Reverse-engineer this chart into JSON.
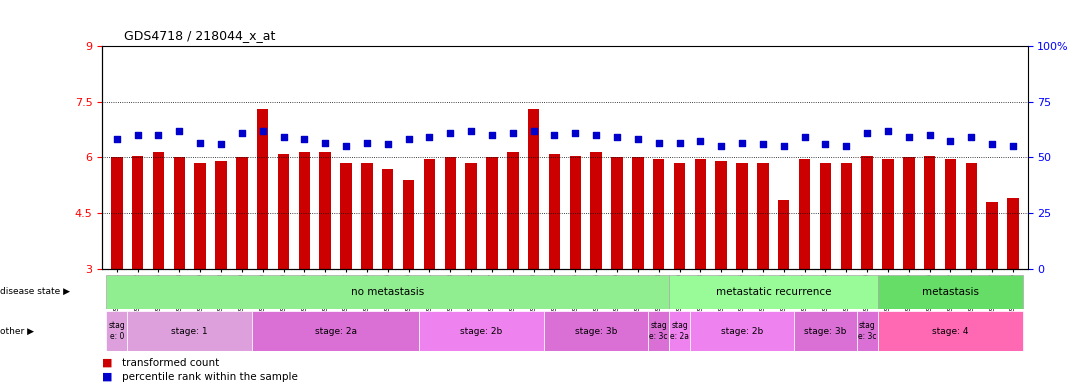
{
  "title": "GDS4718 / 218044_x_at",
  "samples": [
    "GSM549121",
    "GSM549102",
    "GSM549104",
    "GSM549108",
    "GSM549119",
    "GSM549133",
    "GSM549139",
    "GSM549099",
    "GSM549109",
    "GSM549110",
    "GSM549114",
    "GSM549122",
    "GSM549134",
    "GSM549136",
    "GSM549140",
    "GSM549111",
    "GSM549113",
    "GSM549132",
    "GSM549137",
    "GSM549142",
    "GSM549100",
    "GSM549107",
    "GSM549115",
    "GSM549116",
    "GSM549120",
    "GSM549131",
    "GSM549118",
    "GSM549129",
    "GSM549123",
    "GSM549124",
    "GSM549126",
    "GSM549128",
    "GSM549103",
    "GSM549117",
    "GSM549138",
    "GSM549141",
    "GSM549130",
    "GSM549101",
    "GSM549105",
    "GSM549106",
    "GSM549112",
    "GSM549125",
    "GSM549127",
    "GSM549135"
  ],
  "bar_values": [
    6.0,
    6.05,
    6.15,
    6.0,
    5.85,
    5.9,
    6.0,
    7.3,
    6.1,
    6.15,
    6.15,
    5.85,
    5.85,
    5.7,
    5.4,
    5.95,
    6.0,
    5.85,
    6.0,
    6.15,
    7.3,
    6.1,
    6.05,
    6.15,
    6.0,
    6.0,
    5.95,
    5.85,
    5.95,
    5.9,
    5.85,
    5.85,
    4.85,
    5.95,
    5.85,
    5.85,
    6.05,
    5.95,
    6.0,
    6.05,
    5.95,
    5.85,
    4.8,
    4.9
  ],
  "dot_values": [
    6.5,
    6.6,
    6.6,
    6.7,
    6.4,
    6.35,
    6.65,
    6.7,
    6.55,
    6.5,
    6.4,
    6.3,
    6.4,
    6.35,
    6.5,
    6.55,
    6.65,
    6.7,
    6.6,
    6.65,
    6.7,
    6.6,
    6.65,
    6.6,
    6.55,
    6.5,
    6.4,
    6.4,
    6.45,
    6.3,
    6.4,
    6.35,
    6.3,
    6.55,
    6.35,
    6.3,
    6.65,
    6.7,
    6.55,
    6.6,
    6.45,
    6.55,
    6.35,
    6.3
  ],
  "ylim": [
    3,
    9
  ],
  "yticks": [
    3,
    4.5,
    6,
    7.5,
    9
  ],
  "right_yticks": [
    0,
    25,
    50,
    75,
    100
  ],
  "right_ylim": [
    0,
    100
  ],
  "dotted_lines": [
    4.5,
    6.0,
    7.5
  ],
  "bar_color": "#CC0000",
  "dot_color": "#0000CC",
  "disease_state_groups": [
    {
      "label": "no metastasis",
      "start": 0,
      "end": 27,
      "color": "#90EE90"
    },
    {
      "label": "metastatic recurrence",
      "start": 27,
      "end": 37,
      "color": "#98FB98"
    },
    {
      "label": "metastasis",
      "start": 37,
      "end": 44,
      "color": "#66DD66"
    }
  ],
  "stage_groups": [
    {
      "label": "stag\ne: 0",
      "start": 0,
      "end": 1,
      "color": "#DDA0DD"
    },
    {
      "label": "stage: 1",
      "start": 1,
      "end": 7,
      "color": "#DDA0DD"
    },
    {
      "label": "stage: 2a",
      "start": 7,
      "end": 15,
      "color": "#DA70D6"
    },
    {
      "label": "stage: 2b",
      "start": 15,
      "end": 21,
      "color": "#EE82EE"
    },
    {
      "label": "stage: 3b",
      "start": 21,
      "end": 26,
      "color": "#DA70D6"
    },
    {
      "label": "stag\ne: 3c",
      "start": 26,
      "end": 27,
      "color": "#DA70D6"
    },
    {
      "label": "stag\ne: 2a",
      "start": 27,
      "end": 28,
      "color": "#EE82EE"
    },
    {
      "label": "stage: 2b",
      "start": 28,
      "end": 33,
      "color": "#EE82EE"
    },
    {
      "label": "stage: 3b",
      "start": 33,
      "end": 36,
      "color": "#DA70D6"
    },
    {
      "label": "stag\ne: 3c",
      "start": 36,
      "end": 37,
      "color": "#DA70D6"
    },
    {
      "label": "stage: 4",
      "start": 37,
      "end": 44,
      "color": "#FF69B4"
    }
  ],
  "legend_items": [
    {
      "label": "transformed count",
      "color": "#CC0000"
    },
    {
      "label": "percentile rank within the sample",
      "color": "#0000CC"
    }
  ],
  "disease_state_label": "disease state",
  "other_label": "other",
  "bg_color": "#F0F0F0"
}
